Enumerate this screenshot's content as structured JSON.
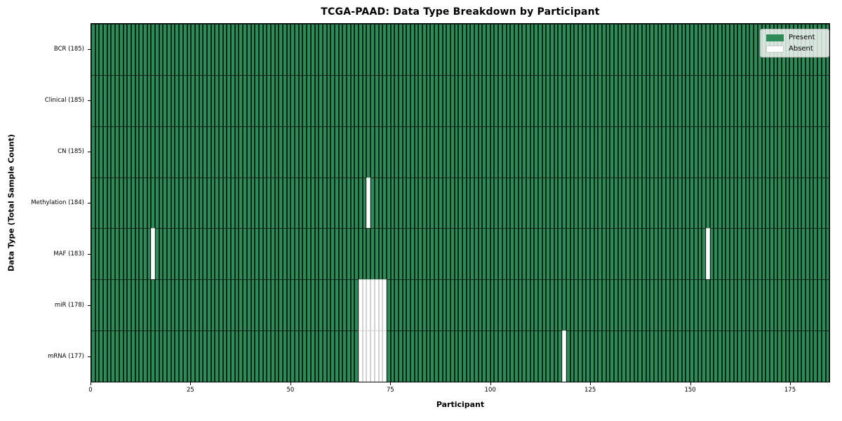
{
  "chart_data": {
    "type": "heatmap",
    "title": "TCGA-PAAD: Data Type Breakdown by Participant",
    "xlabel": "Participant",
    "ylabel": "Data Type (Total Sample Count)",
    "n_participants": 185,
    "xlim": [
      0,
      185
    ],
    "x_ticks": [
      0,
      25,
      50,
      75,
      100,
      125,
      150,
      175
    ],
    "grid": "off",
    "legend": {
      "position": "upper-right",
      "entries": [
        {
          "label": "Present",
          "color": "#2e8b57"
        },
        {
          "label": "Absent",
          "color": "#ffffff"
        }
      ]
    },
    "rows": [
      {
        "data_type": "BCR",
        "total_samples": 185,
        "label": "BCR (185)",
        "absent_participants": []
      },
      {
        "data_type": "Clinical",
        "total_samples": 185,
        "label": "Clinical (185)",
        "absent_participants": []
      },
      {
        "data_type": "CN",
        "total_samples": 185,
        "label": "CN (185)",
        "absent_participants": []
      },
      {
        "data_type": "Methylation",
        "total_samples": 184,
        "label": "Methylation (184)",
        "absent_participants": [
          69
        ]
      },
      {
        "data_type": "MAF",
        "total_samples": 183,
        "label": "MAF (183)",
        "absent_participants": [
          15,
          154
        ]
      },
      {
        "data_type": "miR",
        "total_samples": 178,
        "label": "miR (178)",
        "absent_participants": [
          67,
          68,
          69,
          70,
          71,
          72,
          73
        ]
      },
      {
        "data_type": "mRNA",
        "total_samples": 177,
        "label": "mRNA (177)",
        "absent_participants": [
          67,
          68,
          69,
          70,
          71,
          72,
          73,
          118
        ]
      }
    ],
    "colors": {
      "present": "#2e8b57",
      "absent": "#ffffff",
      "cell_edge_present": "rgba(0, 0, 0, 0.72)",
      "cell_edge_absent": "rgba(0, 0, 0, 0.18)",
      "spine": "#000000"
    }
  }
}
